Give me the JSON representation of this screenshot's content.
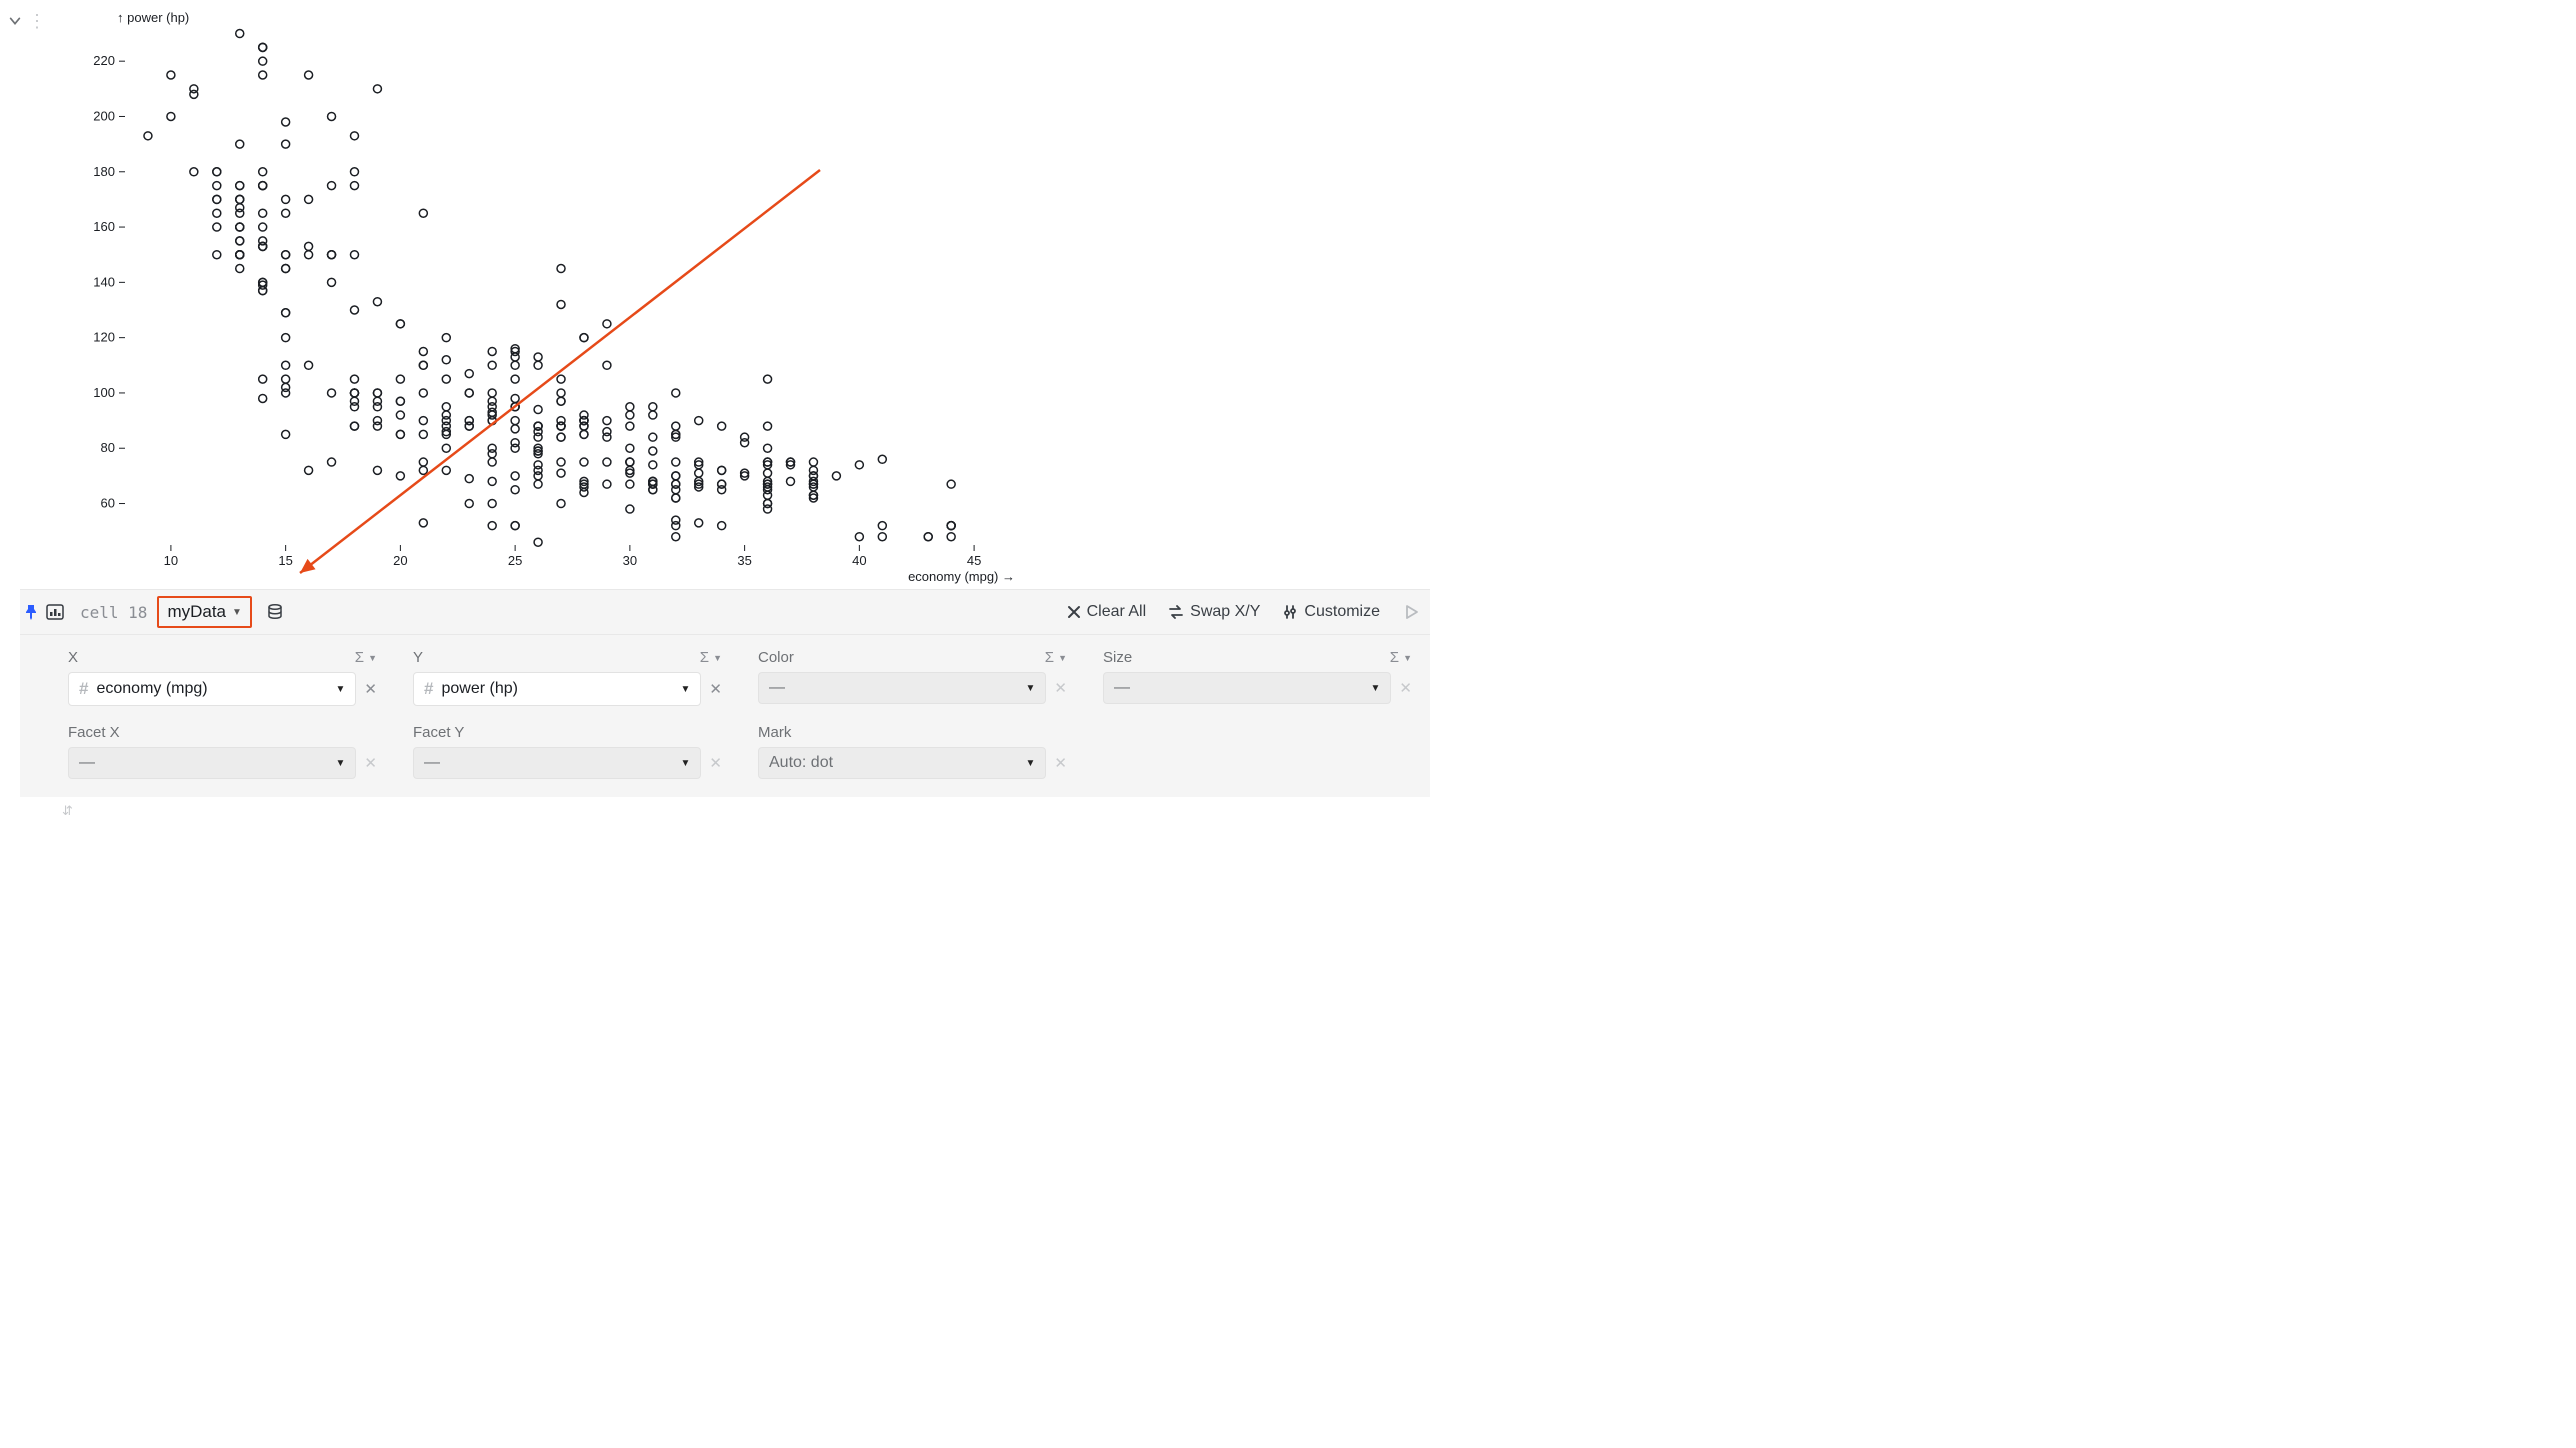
{
  "cell": {
    "name": "cell 18",
    "data_source": "myData"
  },
  "chart": {
    "type": "scatter",
    "y_axis": {
      "label": "power (hp)",
      "ticks": [
        60,
        80,
        100,
        120,
        140,
        160,
        180,
        200,
        220
      ],
      "ymin": 45,
      "ymax": 232
    },
    "x_axis": {
      "label": "economy (mpg)",
      "ticks": [
        10,
        15,
        20,
        25,
        30,
        35,
        40,
        45
      ],
      "xmin": 8,
      "xmax": 47
    },
    "marker": {
      "stroke": "#1b1e23",
      "stroke_width": 1.5,
      "fill": "none",
      "radius": 4
    },
    "background": "#ffffff",
    "points": [
      [
        18,
        130
      ],
      [
        15,
        165
      ],
      [
        18,
        150
      ],
      [
        16,
        150
      ],
      [
        17,
        140
      ],
      [
        15,
        198
      ],
      [
        14,
        220
      ],
      [
        14,
        215
      ],
      [
        14,
        225
      ],
      [
        15,
        190
      ],
      [
        15,
        170
      ],
      [
        14,
        160
      ],
      [
        15,
        150
      ],
      [
        14,
        225
      ],
      [
        24,
        95
      ],
      [
        22,
        95
      ],
      [
        18,
        97
      ],
      [
        21,
        85
      ],
      [
        27,
        88
      ],
      [
        26,
        46
      ],
      [
        25,
        87
      ],
      [
        24,
        90
      ],
      [
        25,
        95
      ],
      [
        26,
        113
      ],
      [
        21,
        90
      ],
      [
        10,
        215
      ],
      [
        10,
        200
      ],
      [
        11,
        210
      ],
      [
        9,
        193
      ],
      [
        27,
        88
      ],
      [
        28,
        90
      ],
      [
        25,
        95
      ],
      [
        25,
        113
      ],
      [
        19,
        90
      ],
      [
        16,
        215
      ],
      [
        17,
        200
      ],
      [
        19,
        210
      ],
      [
        18,
        193
      ],
      [
        14,
        165
      ],
      [
        14,
        153
      ],
      [
        14,
        175
      ],
      [
        14,
        175
      ],
      [
        12,
        170
      ],
      [
        13,
        160
      ],
      [
        13,
        170
      ],
      [
        18,
        175
      ],
      [
        22,
        105
      ],
      [
        19,
        100
      ],
      [
        18,
        88
      ],
      [
        23,
        100
      ],
      [
        28,
        90
      ],
      [
        30,
        75
      ],
      [
        30,
        75
      ],
      [
        31,
        67
      ],
      [
        35,
        71
      ],
      [
        27,
        75
      ],
      [
        26,
        72
      ],
      [
        24,
        93
      ],
      [
        25,
        95
      ],
      [
        23,
        88
      ],
      [
        20,
        97
      ],
      [
        21,
        75
      ],
      [
        13,
        150
      ],
      [
        14,
        153
      ],
      [
        15,
        145
      ],
      [
        14,
        137
      ],
      [
        17,
        150
      ],
      [
        11,
        208
      ],
      [
        13,
        155
      ],
      [
        12,
        160
      ],
      [
        13,
        190
      ],
      [
        19,
        97
      ],
      [
        15,
        150
      ],
      [
        13,
        167
      ],
      [
        13,
        170
      ],
      [
        14,
        180
      ],
      [
        18,
        100
      ],
      [
        22,
        88
      ],
      [
        21,
        72
      ],
      [
        26,
        94
      ],
      [
        22,
        90
      ],
      [
        28,
        85
      ],
      [
        23,
        107
      ],
      [
        28,
        90
      ],
      [
        27,
        145
      ],
      [
        13,
        230
      ],
      [
        14,
        225
      ],
      [
        13,
        175
      ],
      [
        14,
        105
      ],
      [
        15,
        110
      ],
      [
        12,
        165
      ],
      [
        13,
        175
      ],
      [
        13,
        150
      ],
      [
        14,
        153
      ],
      [
        13,
        150
      ],
      [
        12,
        180
      ],
      [
        13,
        170
      ],
      [
        12,
        175
      ],
      [
        13,
        165
      ],
      [
        13,
        160
      ],
      [
        12,
        170
      ],
      [
        13,
        155
      ],
      [
        14,
        140
      ],
      [
        13,
        150
      ],
      [
        14,
        155
      ],
      [
        13,
        145
      ],
      [
        12,
        150
      ],
      [
        13,
        150
      ],
      [
        14,
        153
      ],
      [
        13,
        150
      ],
      [
        15,
        145
      ],
      [
        14,
        137
      ],
      [
        17,
        150
      ],
      [
        22,
        86
      ],
      [
        24,
        80
      ],
      [
        20,
        92
      ],
      [
        20,
        97
      ],
      [
        19,
        88
      ],
      [
        18,
        100
      ],
      [
        14,
        139
      ],
      [
        15,
        129
      ],
      [
        14,
        140
      ],
      [
        15,
        129
      ],
      [
        14,
        98
      ],
      [
        15,
        120
      ],
      [
        18,
        100
      ],
      [
        15,
        105
      ],
      [
        17,
        100
      ],
      [
        23,
        90
      ],
      [
        20,
        85
      ],
      [
        21,
        110
      ],
      [
        25,
        80
      ],
      [
        23,
        100
      ],
      [
        22,
        80
      ],
      [
        20,
        85
      ],
      [
        21,
        165
      ],
      [
        17,
        175
      ],
      [
        16,
        153
      ],
      [
        17,
        150
      ],
      [
        18,
        180
      ],
      [
        16,
        170
      ],
      [
        14,
        175
      ],
      [
        16,
        110
      ],
      [
        19,
        72
      ],
      [
        19,
        100
      ],
      [
        18,
        88
      ],
      [
        18,
        100
      ],
      [
        23,
        88
      ],
      [
        26,
        88
      ],
      [
        24,
        75
      ],
      [
        21,
        110
      ],
      [
        13,
        160
      ],
      [
        11,
        180
      ],
      [
        12,
        180
      ],
      [
        18,
        95
      ],
      [
        20,
        125
      ],
      [
        19,
        133
      ],
      [
        15,
        100
      ],
      [
        24,
        110
      ],
      [
        20,
        105
      ],
      [
        19,
        95
      ],
      [
        15,
        85
      ],
      [
        24,
        97
      ],
      [
        20,
        125
      ],
      [
        22,
        85
      ],
      [
        24,
        115
      ],
      [
        18,
        105
      ],
      [
        30,
        71
      ],
      [
        27,
        97
      ],
      [
        33,
        53
      ],
      [
        25,
        115
      ],
      [
        25,
        98
      ],
      [
        26,
        79
      ],
      [
        27,
        71
      ],
      [
        17,
        75
      ],
      [
        16,
        72
      ],
      [
        15,
        102
      ],
      [
        22,
        72
      ],
      [
        28,
        88
      ],
      [
        30,
        75
      ],
      [
        31,
        79
      ],
      [
        35,
        82
      ],
      [
        27,
        97
      ],
      [
        26,
        80
      ],
      [
        24,
        78
      ],
      [
        25,
        52
      ],
      [
        23,
        60
      ],
      [
        20,
        70
      ],
      [
        21,
        53
      ],
      [
        21,
        100
      ],
      [
        26,
        78
      ],
      [
        32,
        48
      ],
      [
        28,
        66
      ],
      [
        24,
        52
      ],
      [
        26,
        70
      ],
      [
        24,
        60
      ],
      [
        26,
        88
      ],
      [
        31,
        65
      ],
      [
        36,
        60
      ],
      [
        27,
        84
      ],
      [
        36,
        58
      ],
      [
        36,
        63
      ],
      [
        36,
        66
      ],
      [
        34,
        52
      ],
      [
        38,
        70
      ],
      [
        32,
        54
      ],
      [
        38,
        63
      ],
      [
        41,
        48
      ],
      [
        38,
        66
      ],
      [
        32,
        52
      ],
      [
        25,
        70
      ],
      [
        25,
        65
      ],
      [
        23,
        69
      ],
      [
        27,
        60
      ],
      [
        32,
        70
      ],
      [
        28,
        88
      ],
      [
        24,
        92
      ],
      [
        26,
        74
      ],
      [
        24,
        68
      ],
      [
        32,
        67
      ],
      [
        28,
        67
      ],
      [
        26,
        67
      ],
      [
        31,
        67
      ],
      [
        36,
        74
      ],
      [
        30,
        80
      ],
      [
        34,
        67
      ],
      [
        29,
        67
      ],
      [
        25,
        105
      ],
      [
        28,
        85
      ],
      [
        27,
        88
      ],
      [
        35,
        70
      ],
      [
        36,
        60
      ],
      [
        38,
        67
      ],
      [
        30,
        95
      ],
      [
        29,
        90
      ],
      [
        40,
        48
      ],
      [
        41,
        52
      ],
      [
        44,
        48
      ],
      [
        43,
        48
      ],
      [
        36,
        88
      ],
      [
        37,
        75
      ],
      [
        28,
        75
      ],
      [
        29,
        75
      ],
      [
        32,
        100
      ],
      [
        37,
        74
      ],
      [
        28,
        120
      ],
      [
        29,
        110
      ],
      [
        31,
        95
      ],
      [
        25,
        82
      ],
      [
        25,
        90
      ],
      [
        31,
        68
      ],
      [
        26,
        88
      ],
      [
        32,
        75
      ],
      [
        28,
        92
      ],
      [
        24,
        100
      ],
      [
        27,
        105
      ],
      [
        33,
        74
      ],
      [
        36,
        68
      ],
      [
        37,
        68
      ],
      [
        31,
        68
      ],
      [
        38,
        70
      ],
      [
        36,
        71
      ],
      [
        36,
        65
      ],
      [
        36,
        80
      ],
      [
        43,
        48
      ],
      [
        33,
        71
      ],
      [
        44,
        52
      ],
      [
        44,
        52
      ],
      [
        41,
        76
      ],
      [
        38,
        72
      ],
      [
        28,
        64
      ],
      [
        30,
        58
      ],
      [
        34,
        72
      ],
      [
        30,
        72
      ],
      [
        32,
        62
      ],
      [
        33,
        66
      ],
      [
        32,
        88
      ],
      [
        33,
        75
      ],
      [
        32,
        70
      ],
      [
        33,
        67
      ],
      [
        34,
        67
      ],
      [
        31,
        67
      ],
      [
        32,
        65
      ],
      [
        44,
        52
      ],
      [
        44,
        52
      ],
      [
        34,
        65
      ],
      [
        27,
        132
      ],
      [
        24,
        90
      ],
      [
        23,
        90
      ],
      [
        28,
        90
      ],
      [
        29,
        86
      ],
      [
        34,
        72
      ],
      [
        27,
        84
      ],
      [
        32,
        84
      ],
      [
        31,
        92
      ],
      [
        26,
        110
      ],
      [
        29,
        84
      ],
      [
        38,
        67
      ],
      [
        36,
        67
      ],
      [
        30,
        67
      ],
      [
        22,
        112
      ],
      [
        36,
        75
      ],
      [
        37,
        75
      ],
      [
        38,
        75
      ],
      [
        36,
        105
      ],
      [
        32,
        85
      ],
      [
        38,
        68
      ],
      [
        39,
        70
      ],
      [
        36,
        67
      ],
      [
        25,
        116
      ],
      [
        38,
        62
      ],
      [
        26,
        79
      ],
      [
        22,
        120
      ],
      [
        32,
        85
      ],
      [
        31,
        68
      ],
      [
        29,
        125
      ],
      [
        21,
        115
      ],
      [
        25,
        110
      ],
      [
        28,
        68
      ],
      [
        27,
        88
      ],
      [
        30,
        88
      ],
      [
        34,
        88
      ],
      [
        35,
        84
      ],
      [
        31,
        84
      ],
      [
        33,
        90
      ],
      [
        30,
        92
      ],
      [
        31,
        74
      ],
      [
        33,
        68
      ],
      [
        27,
        90
      ],
      [
        26,
        86
      ],
      [
        25,
        52
      ],
      [
        26,
        84
      ],
      [
        38,
        63
      ],
      [
        22,
        92
      ],
      [
        32,
        62
      ],
      [
        36,
        75
      ],
      [
        27,
        100
      ],
      [
        40,
        74
      ],
      [
        44,
        67
      ],
      [
        32,
        67
      ],
      [
        28,
        120
      ],
      [
        31,
        65
      ]
    ]
  },
  "toolbar": {
    "clear_all": "Clear All",
    "swap": "Swap X/Y",
    "customize": "Customize"
  },
  "channels": {
    "x": {
      "label": "X",
      "field": "economy (mpg)"
    },
    "y": {
      "label": "Y",
      "field": "power (hp)"
    },
    "color": {
      "label": "Color",
      "field": "—"
    },
    "size": {
      "label": "Size",
      "field": "—"
    },
    "facet_x": {
      "label": "Facet X",
      "field": "—"
    },
    "facet_y": {
      "label": "Facet Y",
      "field": "—"
    },
    "mark": {
      "label": "Mark",
      "field": "Auto: dot"
    }
  },
  "sigma_glyph": "Σ",
  "annotation": {
    "arrow_color": "#e64a19",
    "highlight_box_color": "#e64a19"
  }
}
